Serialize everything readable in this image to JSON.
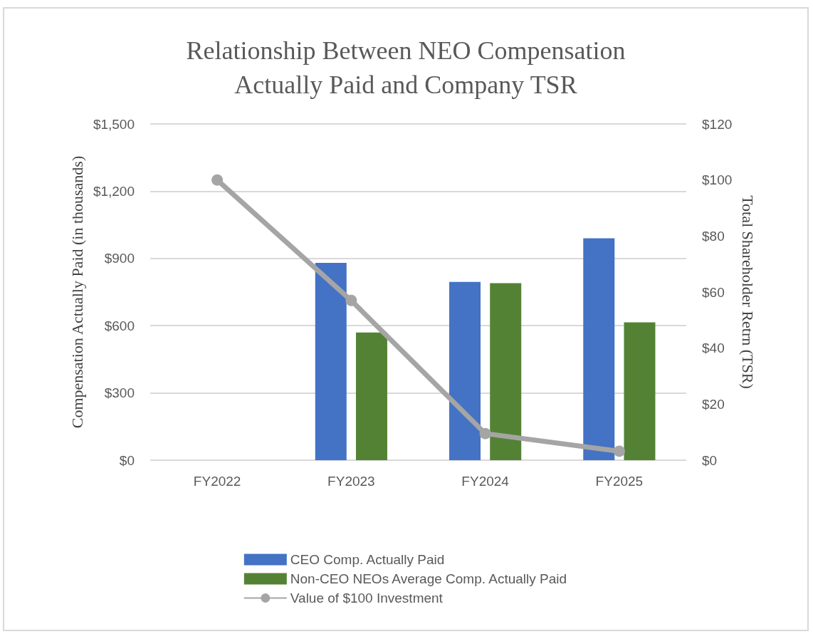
{
  "chart_data": {
    "type": "bar",
    "title": "Relationship Between NEO Compensation\nActually Paid and Company TSR",
    "ylabel": "Compensation Actually Paid (in thousands)",
    "y2label": "Total Shareholder Retrn (TSR)",
    "categories": [
      "FY2022",
      "FY2023",
      "FY2024",
      "FY2025"
    ],
    "series": [
      {
        "name": "CEO Comp. Actually Paid",
        "color": "#4472c4",
        "values": [
          null,
          880,
          795,
          990
        ]
      },
      {
        "name": "Non-CEO NEOs Average Comp. Actually Paid",
        "color": "#548235",
        "values": [
          null,
          570,
          790,
          615
        ]
      },
      {
        "name": "Value of $100 Investment",
        "type": "line",
        "axis": "y2",
        "color": "#a5a5a5",
        "values": [
          100,
          57,
          9.5,
          3.2
        ]
      }
    ],
    "ylim": [
      0,
      1500
    ],
    "yticks": [
      {
        "value": 0,
        "label": "$0"
      },
      {
        "value": 300,
        "label": "$300"
      },
      {
        "value": 600,
        "label": "$600"
      },
      {
        "value": 900,
        "label": "$900"
      },
      {
        "value": 1200,
        "label": "$1,200"
      },
      {
        "value": 1500,
        "label": "$1,500"
      }
    ],
    "y2lim": [
      0,
      120
    ],
    "y2ticks": [
      {
        "value": 0,
        "label": "$0"
      },
      {
        "value": 20,
        "label": "$20"
      },
      {
        "value": 40,
        "label": "$40"
      },
      {
        "value": 60,
        "label": "$60"
      },
      {
        "value": 80,
        "label": "$80"
      },
      {
        "value": 100,
        "label": "$100"
      },
      {
        "value": 120,
        "label": "$120"
      }
    ],
    "grid": "y",
    "legend": "bottom",
    "marker": "circle"
  }
}
